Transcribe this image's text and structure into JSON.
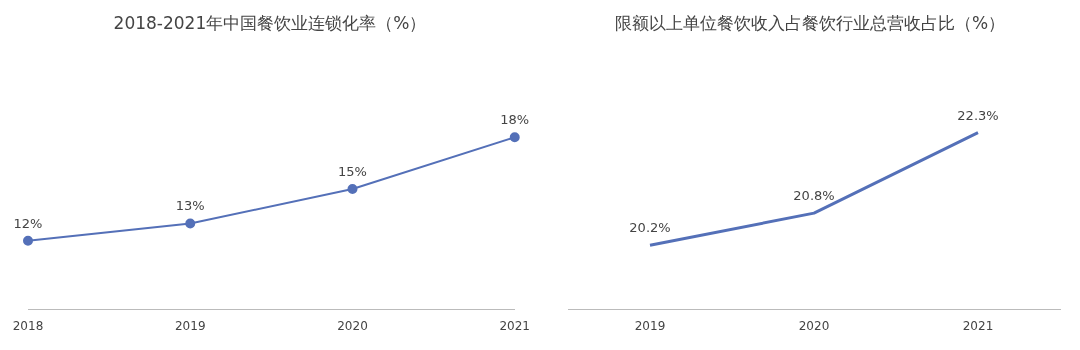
{
  "chart_data": [
    {
      "type": "line",
      "title": "2018-2021年中国餐饮业连锁化率（%）",
      "categories": [
        "2018",
        "2019",
        "2020",
        "2021"
      ],
      "tick_labels": "x",
      "grid": false,
      "legend": false,
      "marker": "circle",
      "line_style": "solid",
      "series": [
        {
          "color": "#5470b8",
          "values": [
            12,
            13,
            15,
            18
          ],
          "value_labels": [
            "12%",
            "13%",
            "15%",
            "18%"
          ]
        }
      ]
    },
    {
      "type": "line",
      "title": "限额以上单位餐饮收入占餐饮行业总营收占比（%）",
      "categories": [
        "2019",
        "2020",
        "2021"
      ],
      "tick_labels": "x",
      "grid": false,
      "legend": false,
      "marker": "none",
      "line_style": "solid",
      "series": [
        {
          "color": "#5470b8",
          "values": [
            20.2,
            20.8,
            22.3
          ],
          "value_labels": [
            "20.2%",
            "20.8%",
            "22.3%"
          ]
        }
      ]
    }
  ]
}
